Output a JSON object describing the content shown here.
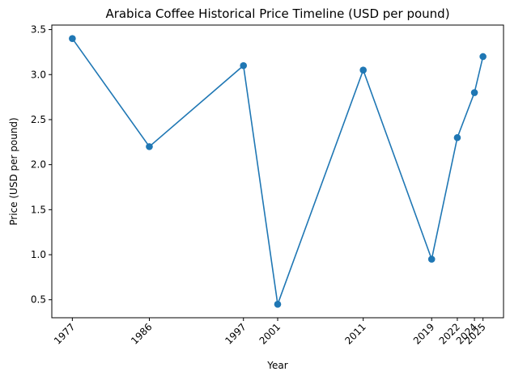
{
  "chart_data": {
    "type": "line",
    "title": "Arabica Coffee Historical Price Timeline (USD per pound)",
    "xlabel": "Year",
    "ylabel": "Price (USD per pound)",
    "x": [
      1977,
      1986,
      1997,
      2001,
      2011,
      2019,
      2022,
      2024,
      2025
    ],
    "x_tick_labels": [
      "1977",
      "1986",
      "1997",
      "2001",
      "2011",
      "2019",
      "2022",
      "2024",
      "2025"
    ],
    "y": [
      3.4,
      2.2,
      3.1,
      0.45,
      3.05,
      0.95,
      2.3,
      2.8,
      3.2
    ],
    "yticks": [
      0.5,
      1.0,
      1.5,
      2.0,
      2.5,
      3.0,
      3.5
    ],
    "y_tick_labels": [
      "0.5",
      "1.0",
      "1.5",
      "2.0",
      "2.5",
      "3.0",
      "3.5"
    ],
    "xlim": [
      1974.6,
      2027.4
    ],
    "ylim": [
      0.3,
      3.55
    ],
    "grid": false,
    "legend": "none",
    "line_color": "#1f77b4",
    "marker": "circle"
  }
}
